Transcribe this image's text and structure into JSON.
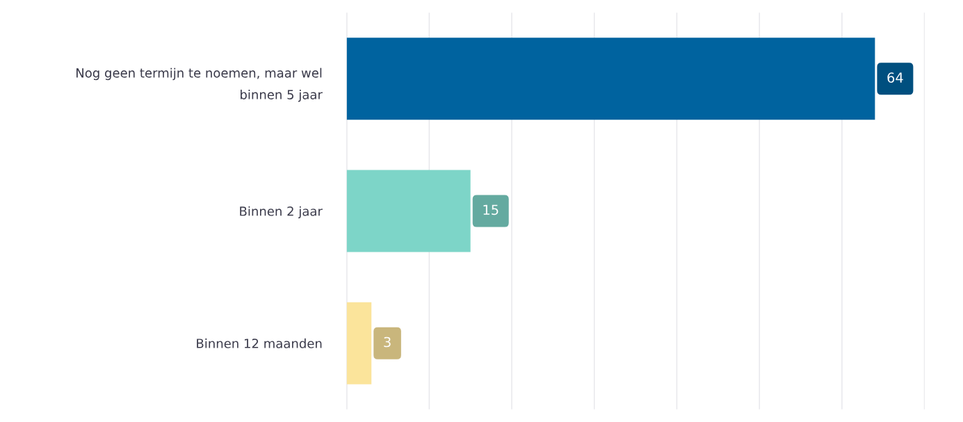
{
  "chart_data": {
    "type": "bar",
    "orientation": "horizontal",
    "categories": [
      "Nog geen termijn te noemen, maar wel\nbinnen 5 jaar",
      "Binnen 2 jaar",
      "Binnen 12 maanden"
    ],
    "values": [
      64,
      15,
      3
    ],
    "colors": [
      "#00639f",
      "#7dd5c8",
      "#fbe49b"
    ],
    "data_labels": true,
    "xlim": [
      0,
      70
    ],
    "xticks": [
      {
        "value": 0,
        "label": null
      },
      {
        "value": 10,
        "label": null
      },
      {
        "value": 20,
        "label": null
      },
      {
        "value": 30,
        "label": null
      },
      {
        "value": 40,
        "label": null
      },
      {
        "value": 50,
        "label": null
      },
      {
        "value": 60,
        "label": null
      },
      {
        "value": 70,
        "label": null
      }
    ],
    "grid": "x",
    "tick_labels": "y"
  }
}
